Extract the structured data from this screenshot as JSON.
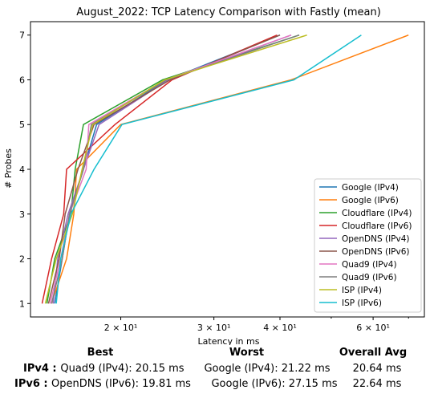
{
  "chart_data": {
    "type": "line",
    "title": "August_2022: TCP Latency Comparison with Fastly (mean)",
    "xlabel": "Latency in ms",
    "ylabel": "# Probes",
    "xscale": "log",
    "xlim": [
      13.5,
      75
    ],
    "ylim": [
      0.7,
      7.3
    ],
    "x_major_ticks": [
      {
        "value": 20,
        "label": "2 × 10¹"
      },
      {
        "value": 30,
        "label": "3 × 10¹"
      },
      {
        "value": 40,
        "label": "4 × 10¹"
      },
      {
        "value": 60,
        "label": "6 × 10¹"
      }
    ],
    "y_ticks": [
      1,
      2,
      3,
      4,
      5,
      6,
      7
    ],
    "legend_position": "lower-right",
    "grid": false,
    "y": [
      1,
      2,
      3,
      4,
      5,
      6,
      7
    ],
    "series": [
      {
        "name": "Google (IPv4)",
        "color": "#1f77b4",
        "x": [
          15.0,
          15.5,
          16.0,
          17.0,
          18.0,
          24.5,
          40.0
        ]
      },
      {
        "name": "Google (IPv6)",
        "color": "#ff7f0e",
        "x": [
          14.8,
          15.8,
          16.3,
          16.5,
          20.0,
          42.0,
          70.0
        ]
      },
      {
        "name": "Cloudflare (IPv4)",
        "color": "#2ca02c",
        "x": [
          14.5,
          15.0,
          16.1,
          16.4,
          17.0,
          24.0,
          43.5
        ]
      },
      {
        "name": "Cloudflare (IPv6)",
        "color": "#d62728",
        "x": [
          14.2,
          14.8,
          15.6,
          15.8,
          19.5,
          25.0,
          39.5
        ]
      },
      {
        "name": "OpenDNS (IPv4)",
        "color": "#9467bd",
        "x": [
          14.9,
          15.2,
          15.9,
          17.0,
          18.2,
          24.6,
          42.0
        ]
      },
      {
        "name": "OpenDNS (IPv6)",
        "color": "#8c564b",
        "x": [
          14.6,
          15.3,
          15.7,
          16.6,
          17.8,
          24.8,
          40.0
        ]
      },
      {
        "name": "Quad9 (IPv4)",
        "color": "#e377c2",
        "x": [
          14.7,
          15.4,
          16.0,
          17.2,
          17.4,
          24.3,
          42.0
        ]
      },
      {
        "name": "Quad9 (IPv6)",
        "color": "#7f7f7f",
        "x": [
          14.8,
          15.5,
          16.0,
          17.0,
          17.6,
          24.4,
          43.5
        ]
      },
      {
        "name": "ISP (IPv4)",
        "color": "#bcbd22",
        "x": [
          14.4,
          15.1,
          16.2,
          16.9,
          17.7,
          24.2,
          45.0
        ]
      },
      {
        "name": "ISP (IPv6)",
        "color": "#17becf",
        "x": [
          15.1,
          15.4,
          16.1,
          17.8,
          20.1,
          42.5,
          57.0
        ]
      }
    ]
  },
  "summary": {
    "headers": {
      "best": "Best",
      "worst": "Worst",
      "avg": "Overall Avg"
    },
    "rows": [
      {
        "label": "IPv4 :",
        "best": "Quad9 (IPv4): 20.15 ms",
        "worst": "Google (IPv4): 21.22 ms",
        "avg": "20.64 ms"
      },
      {
        "label": "IPv6 :",
        "best": "OpenDNS (IPv6): 19.81 ms",
        "worst": "Google (IPv6): 27.15 ms",
        "avg": "22.64 ms"
      }
    ]
  }
}
